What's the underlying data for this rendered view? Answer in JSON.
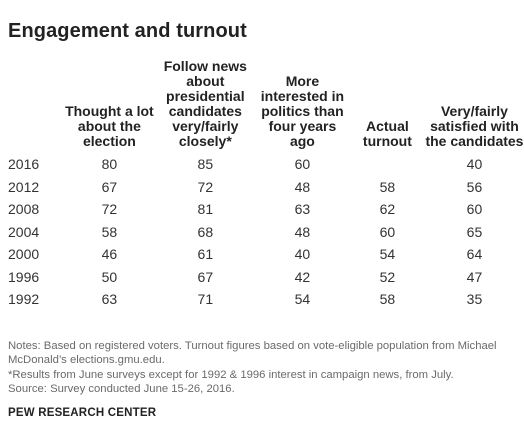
{
  "title": "Engagement and turnout",
  "chart_data": {
    "type": "table",
    "columns": [
      "",
      "Thought a lot about the election",
      "Follow news about presidential candidates very/fairly closely*",
      "More interested in politics than four years ago",
      "Actual turnout",
      "Very/fairly satisfied with the candidates"
    ],
    "rows": [
      [
        "2016",
        "80",
        "85",
        "60",
        "",
        "40"
      ],
      [
        "2012",
        "67",
        "72",
        "48",
        "58",
        "56"
      ],
      [
        "2008",
        "72",
        "81",
        "63",
        "62",
        "60"
      ],
      [
        "2004",
        "58",
        "68",
        "48",
        "60",
        "65"
      ],
      [
        "2000",
        "46",
        "61",
        "40",
        "54",
        "64"
      ],
      [
        "1996",
        "50",
        "67",
        "42",
        "52",
        "47"
      ],
      [
        "1992",
        "63",
        "71",
        "54",
        "58",
        "35"
      ]
    ]
  },
  "notes": [
    "Notes: Based on registered voters. Turnout figures based on vote-eligible population from Michael McDonald’s elections.gmu.edu.",
    "*Results from June surveys except for 1992 & 1996 interest in campaign news, from July.",
    "Source: Survey conducted June 15-26, 2016."
  ],
  "source": "PEW RESEARCH CENTER"
}
